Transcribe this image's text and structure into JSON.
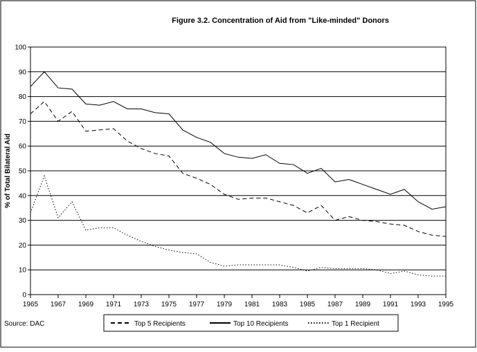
{
  "chart_data": {
    "type": "line",
    "title": "Figure 3.2.  Concentration of Aid from \"Like-minded\" Donors",
    "y_label": "% of Total Bilateral Aid",
    "source": "Source: DAC",
    "x": [
      1965,
      1966,
      1967,
      1968,
      1969,
      1970,
      1971,
      1972,
      1973,
      1974,
      1975,
      1976,
      1977,
      1978,
      1979,
      1980,
      1981,
      1982,
      1983,
      1984,
      1985,
      1986,
      1987,
      1988,
      1989,
      1990,
      1991,
      1992,
      1993,
      1994,
      1995
    ],
    "xlim": [
      1965,
      1995
    ],
    "xticks": [
      1965,
      1967,
      1969,
      1971,
      1973,
      1975,
      1977,
      1979,
      1981,
      1983,
      1985,
      1987,
      1989,
      1991,
      1993,
      1995
    ],
    "ylim": [
      0,
      100
    ],
    "yticks": [
      0,
      10,
      20,
      30,
      40,
      50,
      60,
      70,
      80,
      90,
      100
    ],
    "grid": true,
    "legend": "bottom",
    "series": [
      {
        "name": "Top 5 Recipients",
        "color": "#000000",
        "dash": "dashed",
        "values": [
          73,
          78,
          70,
          74,
          66,
          66.5,
          67,
          62,
          59,
          57,
          56,
          49,
          47,
          44.5,
          40.5,
          38.5,
          39,
          39,
          37.5,
          36,
          33,
          36,
          30,
          31.5,
          30,
          29.5,
          28.5,
          28,
          25.5,
          24,
          23.5
        ]
      },
      {
        "name": "Top 10 Recipients",
        "color": "#000000",
        "dash": "solid",
        "values": [
          84,
          90,
          83.5,
          83,
          77,
          76.5,
          78,
          75,
          75,
          73.5,
          73,
          66.5,
          63.5,
          61.5,
          57,
          55.5,
          55,
          56.5,
          53,
          52.5,
          49,
          51,
          45.5,
          46.5,
          44.5,
          42.5,
          40.5,
          42.5,
          37.5,
          34.5,
          35.5
        ]
      },
      {
        "name": "Top 1 Recipient",
        "color": "#000000",
        "dash": "dotted",
        "values": [
          33,
          48,
          31,
          37.5,
          26,
          27,
          27,
          24,
          21.5,
          19.5,
          18,
          17,
          16.5,
          13,
          11.5,
          12,
          12,
          12,
          12,
          11,
          9.5,
          11,
          10.5,
          10.5,
          10.5,
          10,
          8.5,
          9.5,
          8,
          7.5,
          7.5
        ]
      }
    ]
  }
}
